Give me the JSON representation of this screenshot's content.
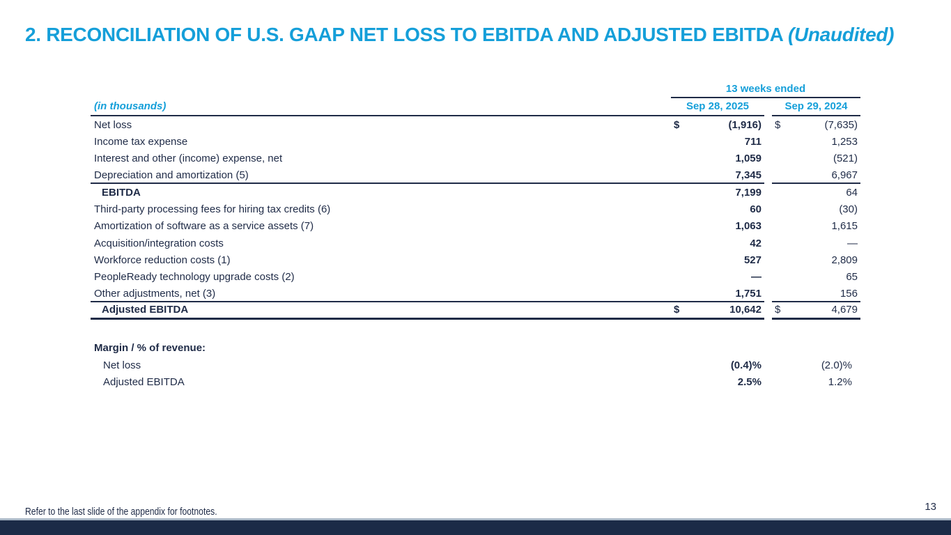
{
  "slide_title": {
    "main": "2. RECONCILIATION OF U.S. GAAP NET LOSS TO EBITDA AND ADJUSTED EBITDA ",
    "suffix": "(Unaudited)"
  },
  "table": {
    "units_label": "(in thousands)",
    "period_header": "13 weeks ended",
    "col_headers": [
      "Sep 28, 2025",
      "Sep 29, 2024"
    ],
    "rows": [
      {
        "label": "Net loss",
        "cur1": "$",
        "v1": "(1,916)",
        "cur2": "$",
        "v2": "(7,635)"
      },
      {
        "label": "Income tax expense",
        "cur1": "",
        "v1": "711",
        "cur2": "",
        "v2": "1,253"
      },
      {
        "label": "Interest and other (income) expense, net",
        "cur1": "",
        "v1": "1,059",
        "cur2": "",
        "v2": "(521)"
      },
      {
        "label": "Depreciation and amortization (5)",
        "cur1": "",
        "v1": "7,345",
        "cur2": "",
        "v2": "6,967"
      },
      {
        "label": "EBITDA",
        "cur1": "",
        "v1": "7,199",
        "cur2": "",
        "v2": "64"
      },
      {
        "label": "Third-party processing fees for hiring tax credits (6)",
        "cur1": "",
        "v1": "60",
        "cur2": "",
        "v2": "(30)"
      },
      {
        "label": "Amortization of software as a service assets (7)",
        "cur1": "",
        "v1": "1,063",
        "cur2": "",
        "v2": "1,615"
      },
      {
        "label": "Acquisition/integration costs",
        "cur1": "",
        "v1": "42",
        "cur2": "",
        "v2": "—"
      },
      {
        "label": "Workforce reduction costs (1)",
        "cur1": "",
        "v1": "527",
        "cur2": "",
        "v2": "2,809"
      },
      {
        "label": "PeopleReady technology upgrade costs (2)",
        "cur1": "",
        "v1": "—",
        "cur2": "",
        "v2": "65"
      },
      {
        "label": "Other adjustments, net (3)",
        "cur1": "",
        "v1": "1,751",
        "cur2": "",
        "v2": "156"
      },
      {
        "label": "Adjusted EBITDA",
        "cur1": "$",
        "v1": "10,642",
        "cur2": "$",
        "v2": "4,679"
      }
    ]
  },
  "margin_section": {
    "heading": "Margin / % of revenue:",
    "rows": [
      {
        "label": "Net loss",
        "v1": "(0.4)%",
        "v2": "(2.0)%"
      },
      {
        "label": "Adjusted EBITDA",
        "v1": "2.5%",
        "v2": "1.2%"
      }
    ]
  },
  "footer": {
    "note": "Refer to the last slide of the appendix for footnotes.",
    "page_number": "13"
  },
  "colors": {
    "accent_blue": "#159FD9",
    "text_navy": "#1F2B47",
    "bottom_bar_navy": "#1B2B47",
    "bottom_bar_top_line": "#AAB8C6"
  }
}
